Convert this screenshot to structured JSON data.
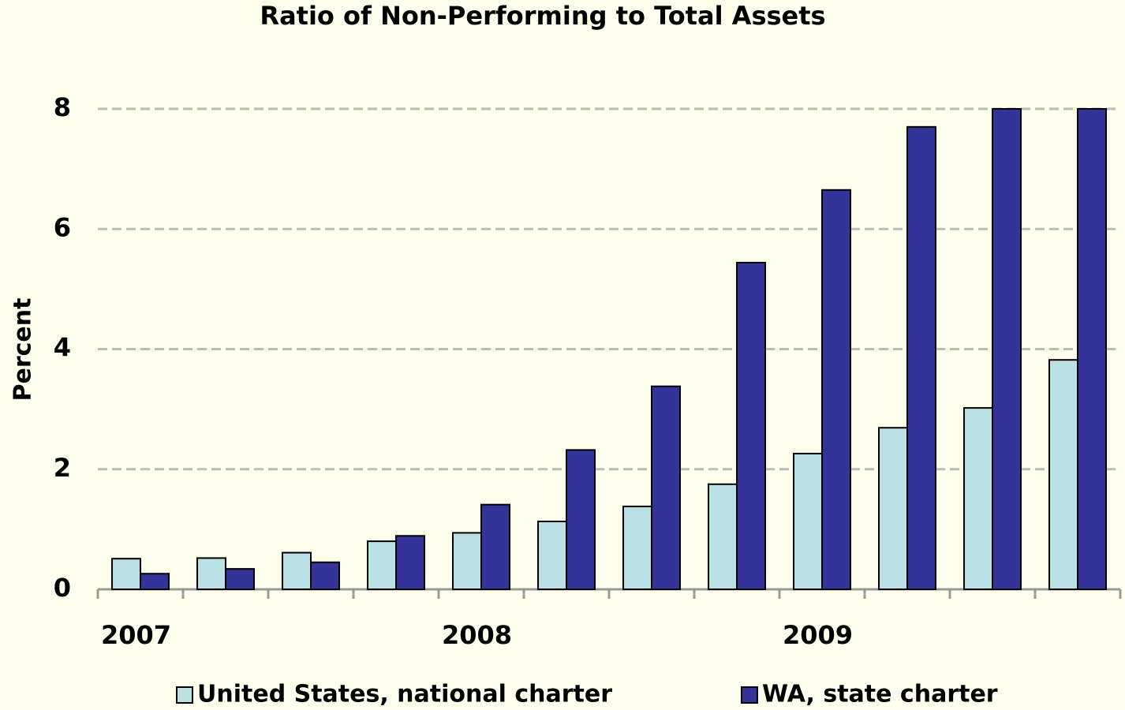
{
  "chart_data": {
    "type": "bar",
    "title": "Ratio of Non-Performing to Total Assets",
    "y_label": "Percent",
    "categories": [
      "2007",
      null,
      null,
      null,
      "2008",
      null,
      null,
      null,
      "2009",
      null,
      null,
      null
    ],
    "series": [
      {
        "name": "United States, national charter",
        "color": "#bbe0e3",
        "values": [
          0.51,
          0.52,
          0.61,
          0.8,
          0.94,
          1.13,
          1.38,
          1.75,
          2.26,
          2.69,
          3.02,
          3.82
        ]
      },
      {
        "name": "WA, state charter",
        "color": "#333399",
        "values": [
          0.26,
          0.34,
          0.45,
          0.89,
          1.41,
          2.32,
          3.38,
          5.44,
          6.65,
          7.7,
          8,
          8
        ]
      }
    ],
    "ylim": [
      0,
      8
    ],
    "yticks": [
      0,
      2,
      4,
      6,
      8
    ],
    "grid": true,
    "legend": "bottom"
  }
}
